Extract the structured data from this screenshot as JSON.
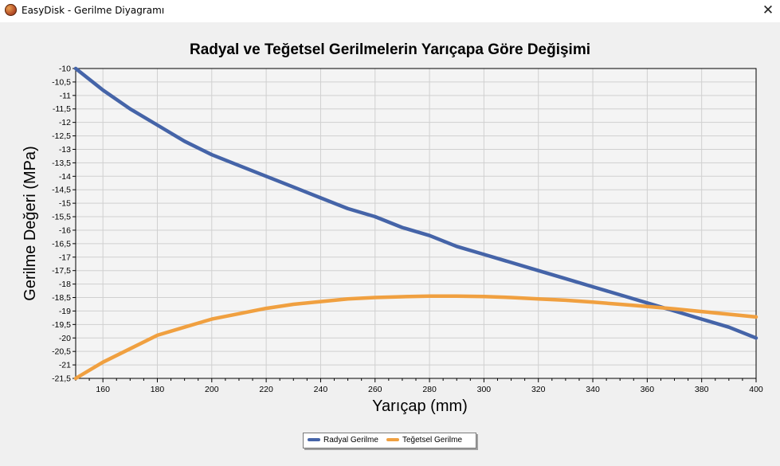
{
  "window": {
    "title": "EasyDisk - Gerilme Diyagramı",
    "close_glyph": "✕"
  },
  "colors": {
    "radial": "#4564a8",
    "tangential": "#f0a040",
    "grid": "#d0d0d0",
    "plot_bg": "#f4f4f4"
  },
  "chart_data": {
    "type": "line",
    "title": "Radyal ve Teğetsel Gerilmelerin Yarıçapa Göre Değişimi",
    "xlabel": "Yarıçap (mm)",
    "ylabel": "Gerilme Değeri (MPa)",
    "xlim": [
      150,
      400
    ],
    "ylim": [
      -21.5,
      -10
    ],
    "xticks": [
      160,
      180,
      200,
      220,
      240,
      260,
      280,
      300,
      320,
      340,
      360,
      380,
      400
    ],
    "yticks": [
      -10,
      -10.5,
      -11,
      -11.5,
      -12,
      -12.5,
      -13,
      -13.5,
      -14,
      -14.5,
      -15,
      -15.5,
      -16,
      -16.5,
      -17,
      -17.5,
      -18,
      -18.5,
      -19,
      -19.5,
      -20,
      -20.5,
      -21,
      -21.5
    ],
    "ytick_labels": [
      "-10",
      "-10,5",
      "-11",
      "-11,5",
      "-12",
      "-12,5",
      "-13",
      "-13,5",
      "-14",
      "-14,5",
      "-15",
      "-15,5",
      "-16",
      "-16,5",
      "-17",
      "-17,5",
      "-18",
      "-18,5",
      "-19",
      "-19,5",
      "-20",
      "-20,5",
      "-21",
      "-21,5"
    ],
    "grid": true,
    "legend_position": "bottom-center",
    "x": [
      150,
      160,
      170,
      180,
      190,
      200,
      210,
      220,
      230,
      240,
      250,
      260,
      270,
      280,
      290,
      300,
      310,
      320,
      330,
      340,
      350,
      360,
      370,
      380,
      390,
      400
    ],
    "series": [
      {
        "name": "Radyal Gerilme",
        "color": "#4564a8",
        "values": [
          -10.0,
          -10.8,
          -11.5,
          -12.1,
          -12.7,
          -13.2,
          -13.6,
          -14.0,
          -14.4,
          -14.8,
          -15.2,
          -15.5,
          -15.9,
          -16.2,
          -16.6,
          -16.9,
          -17.2,
          -17.5,
          -17.8,
          -18.1,
          -18.4,
          -18.7,
          -19.0,
          -19.3,
          -19.6,
          -20.0
        ]
      },
      {
        "name": "Teğetsel Gerilme",
        "color": "#f0a040",
        "values": [
          -21.5,
          -20.9,
          -20.4,
          -19.9,
          -19.6,
          -19.3,
          -19.1,
          -18.9,
          -18.75,
          -18.65,
          -18.55,
          -18.5,
          -18.47,
          -18.45,
          -18.45,
          -18.46,
          -18.5,
          -18.55,
          -18.6,
          -18.67,
          -18.75,
          -18.83,
          -18.92,
          -19.02,
          -19.12,
          -19.22
        ]
      }
    ]
  }
}
